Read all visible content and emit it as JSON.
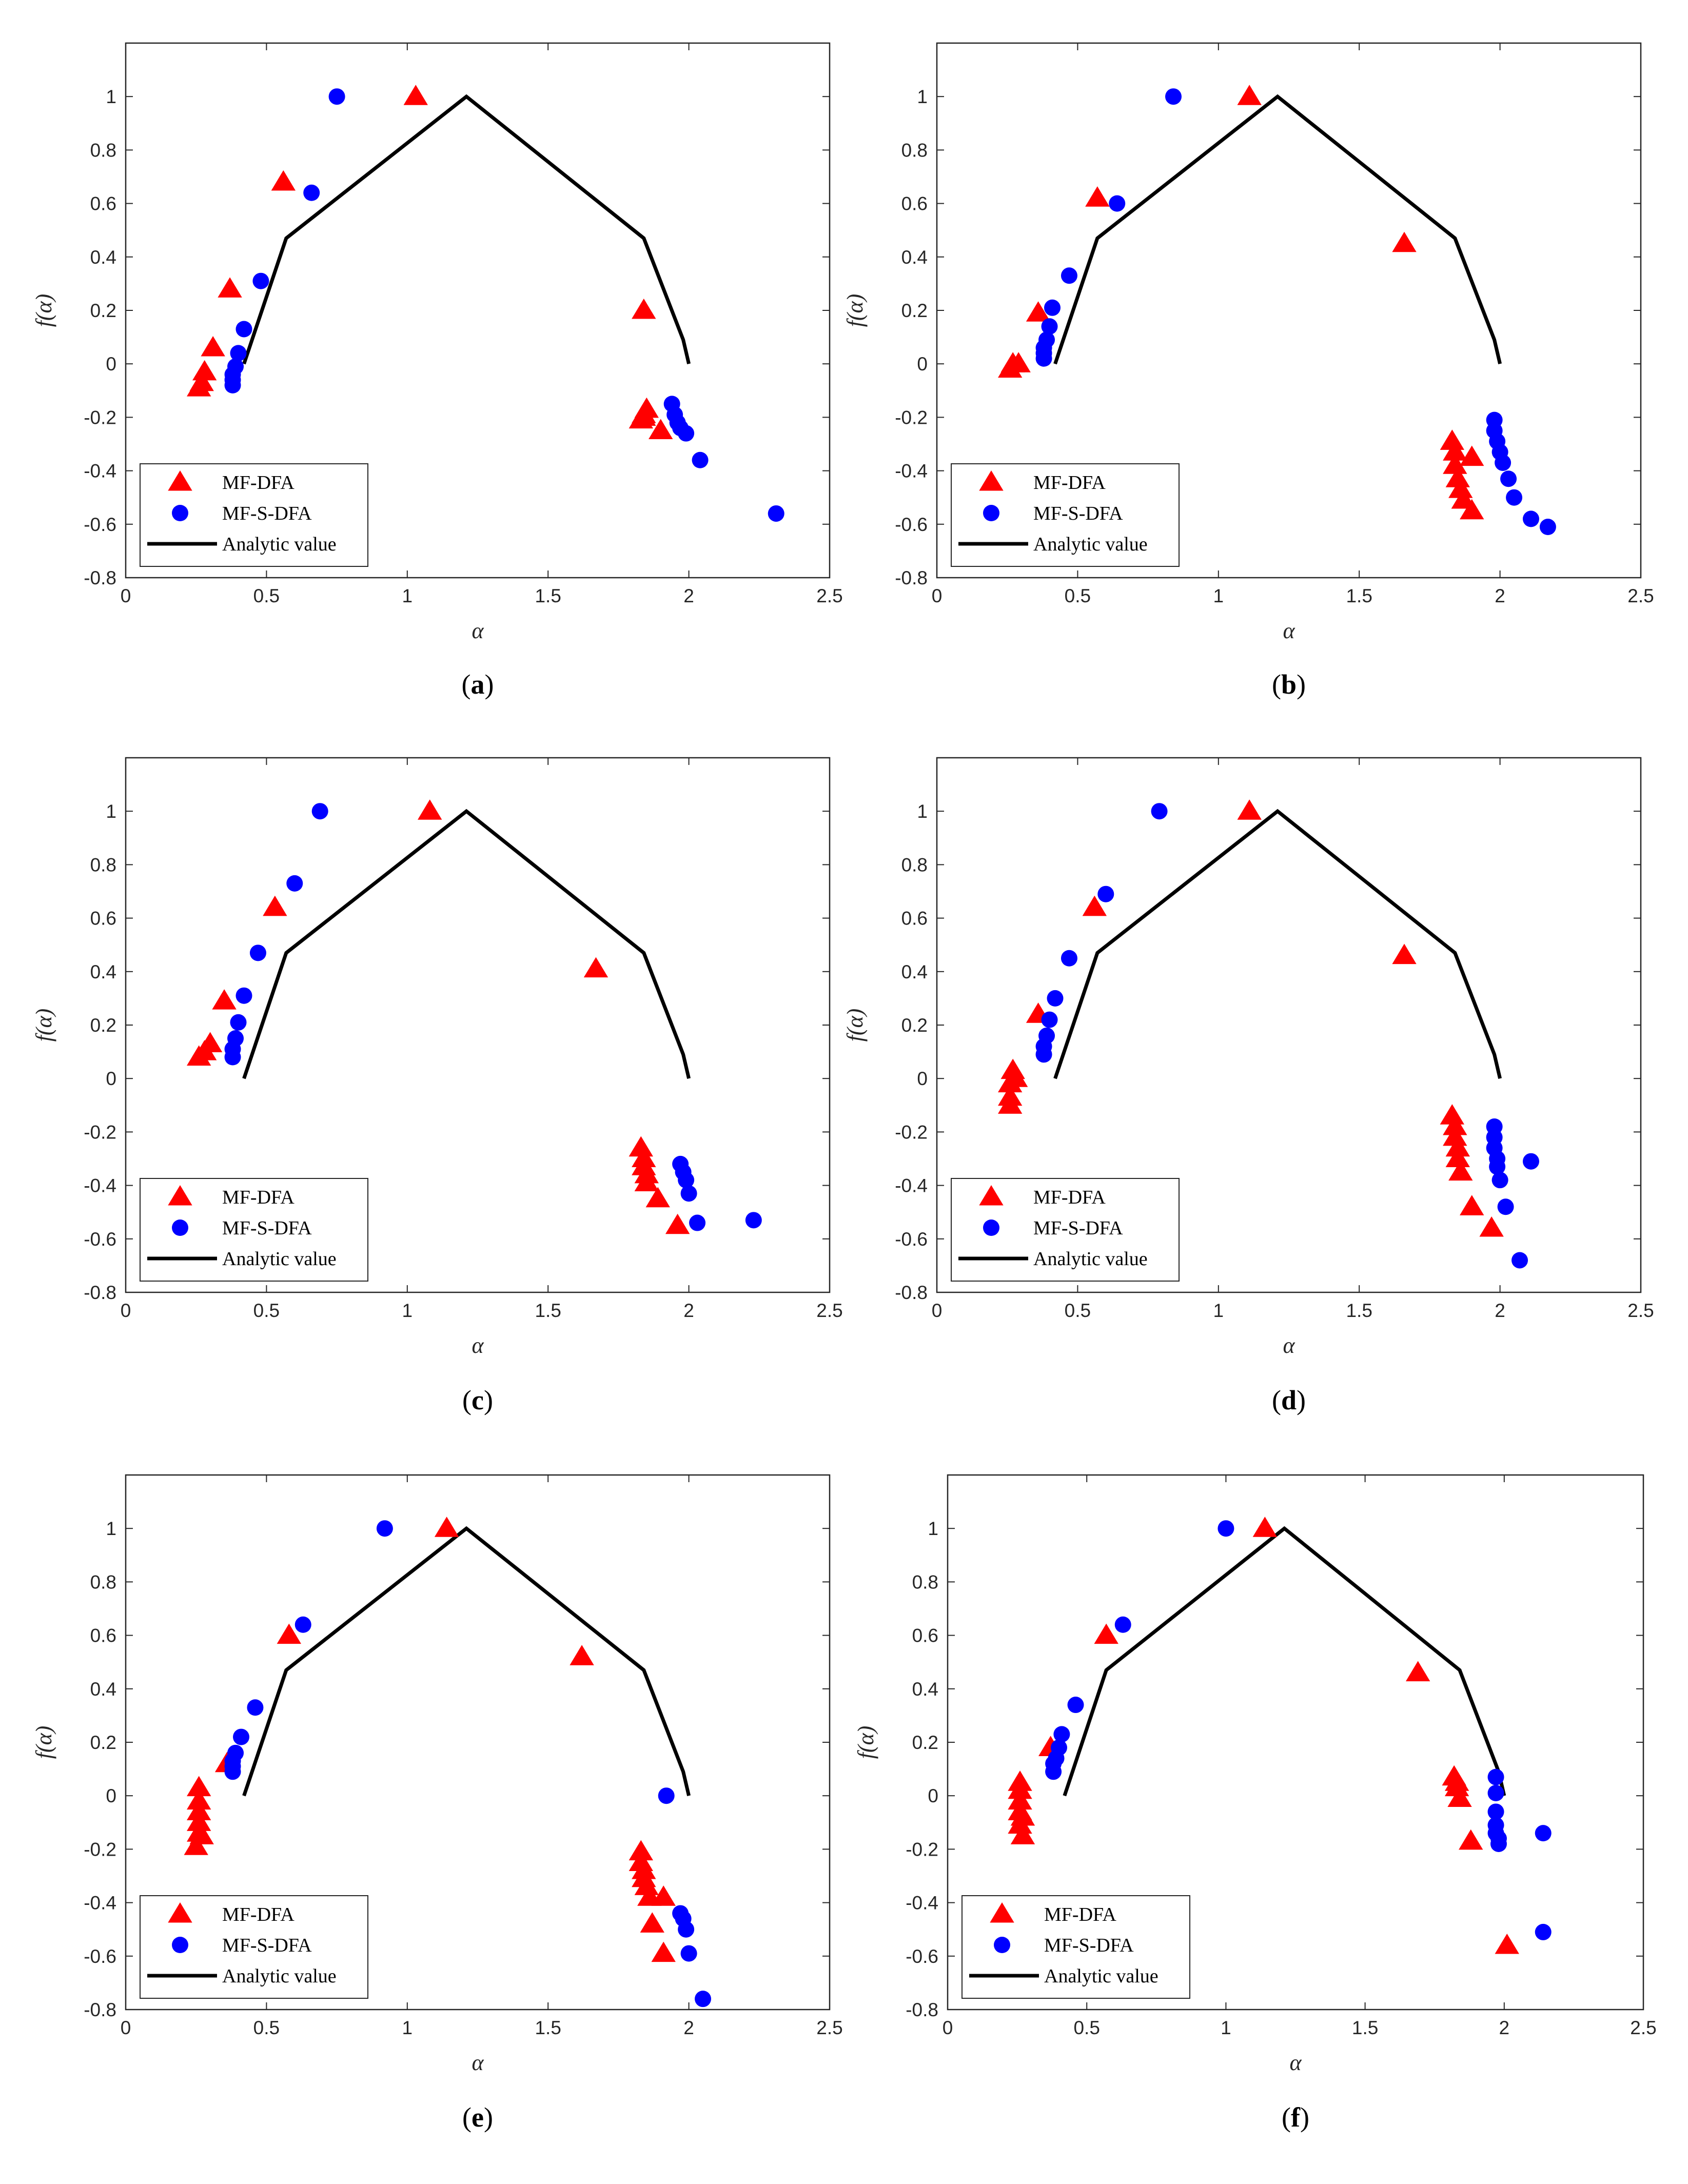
{
  "colors": {
    "mfdfa": "#ff0000",
    "mfsdfa": "#0000ff",
    "analytic": "#000000",
    "axis": "#262626"
  },
  "legend": {
    "items": [
      {
        "label": "MF-DFA",
        "marker": "triangle"
      },
      {
        "label": "MF-S-DFA",
        "marker": "circle"
      },
      {
        "label": "Analytic value",
        "marker": "line"
      }
    ]
  },
  "chart_data": [
    {
      "type": "scatter",
      "caption_letter": "a",
      "xlabel": "α",
      "ylabel": "f(α)",
      "xlim": [
        0,
        2.5
      ],
      "ylim": [
        -0.8,
        1.2
      ],
      "xticks": [
        "0",
        "0.5",
        "1",
        "1.5",
        "2",
        "2.5"
      ],
      "yticks": [
        "-0.8",
        "-0.6",
        "-0.4",
        "-0.2",
        "0",
        "0.2",
        "0.4",
        "0.6",
        "0.8",
        "1"
      ],
      "analytic": {
        "x": [
          0.42,
          0.57,
          1.21,
          1.84,
          1.98,
          2.0
        ],
        "y": [
          0.0,
          0.47,
          1.0,
          0.47,
          0.09,
          0.0
        ]
      },
      "series": [
        {
          "name": "MF-DFA",
          "x": [
            1.03,
            0.56,
            0.37,
            0.31,
            0.28,
            0.27,
            0.26,
            1.84,
            1.85,
            1.84,
            1.84,
            1.83,
            1.9
          ],
          "y": [
            1.0,
            0.68,
            0.28,
            0.06,
            -0.03,
            -0.07,
            -0.09,
            0.2,
            -0.17,
            -0.19,
            -0.2,
            -0.21,
            -0.25
          ]
        },
        {
          "name": "MF-S-DFA",
          "x": [
            0.75,
            0.66,
            0.48,
            0.42,
            0.4,
            0.39,
            0.38,
            0.38,
            0.38,
            1.94,
            1.95,
            1.96,
            1.97,
            1.99,
            2.04,
            2.31
          ],
          "y": [
            1.0,
            0.64,
            0.31,
            0.13,
            0.04,
            -0.01,
            -0.04,
            -0.06,
            -0.08,
            -0.15,
            -0.19,
            -0.22,
            -0.24,
            -0.26,
            -0.36,
            -0.56
          ]
        }
      ]
    },
    {
      "type": "scatter",
      "caption_letter": "b",
      "xlabel": "α",
      "ylabel": "f(α)",
      "xlim": [
        0,
        2.5
      ],
      "ylim": [
        -0.8,
        1.2
      ],
      "xticks": [
        "0",
        "0.5",
        "1",
        "1.5",
        "2",
        "2.5"
      ],
      "yticks": [
        "-0.8",
        "-0.6",
        "-0.4",
        "-0.2",
        "0",
        "0.2",
        "0.4",
        "0.6",
        "0.8",
        "1"
      ],
      "analytic": {
        "x": [
          0.42,
          0.57,
          1.21,
          1.84,
          1.98,
          2.0
        ],
        "y": [
          0.0,
          0.47,
          1.0,
          0.47,
          0.09,
          0.0
        ]
      },
      "series": [
        {
          "name": "MF-DFA",
          "x": [
            1.11,
            0.57,
            0.36,
            0.29,
            0.27,
            0.26,
            1.66,
            1.83,
            1.84,
            1.84,
            1.85,
            1.86,
            1.87,
            1.9,
            1.9
          ],
          "y": [
            1.0,
            0.62,
            0.19,
            0.0,
            0.0,
            -0.02,
            0.45,
            -0.29,
            -0.33,
            -0.38,
            -0.43,
            -0.47,
            -0.51,
            -0.35,
            -0.55
          ]
        },
        {
          "name": "MF-S-DFA",
          "x": [
            0.84,
            0.64,
            0.47,
            0.41,
            0.4,
            0.39,
            0.38,
            0.38,
            0.38,
            1.98,
            1.98,
            1.99,
            2.0,
            2.01,
            2.03,
            2.05,
            2.11,
            2.17
          ],
          "y": [
            1.0,
            0.6,
            0.33,
            0.21,
            0.14,
            0.09,
            0.06,
            0.04,
            0.02,
            -0.21,
            -0.25,
            -0.29,
            -0.33,
            -0.37,
            -0.43,
            -0.5,
            -0.58,
            -0.61
          ]
        }
      ]
    },
    {
      "type": "scatter",
      "caption_letter": "c",
      "xlabel": "α",
      "ylabel": "f(α)",
      "xlim": [
        0,
        2.5
      ],
      "ylim": [
        -0.8,
        1.2
      ],
      "xticks": [
        "0",
        "0.5",
        "1",
        "1.5",
        "2",
        "2.5"
      ],
      "yticks": [
        "-0.8",
        "-0.6",
        "-0.4",
        "-0.2",
        "0",
        "0.2",
        "0.4",
        "0.6",
        "0.8",
        "1"
      ],
      "analytic": {
        "x": [
          0.42,
          0.57,
          1.21,
          1.84,
          1.98,
          2.0
        ],
        "y": [
          0.0,
          0.47,
          1.0,
          0.47,
          0.09,
          0.0
        ]
      },
      "series": [
        {
          "name": "MF-DFA",
          "x": [
            1.08,
            0.53,
            0.35,
            0.3,
            0.28,
            0.26,
            1.67,
            1.83,
            1.84,
            1.84,
            1.85,
            1.85,
            1.89,
            1.96
          ],
          "y": [
            1.0,
            0.64,
            0.29,
            0.13,
            0.1,
            0.08,
            0.41,
            -0.26,
            -0.3,
            -0.33,
            -0.36,
            -0.39,
            -0.45,
            -0.55
          ]
        },
        {
          "name": "MF-S-DFA",
          "x": [
            0.69,
            0.6,
            0.47,
            0.42,
            0.4,
            0.39,
            0.38,
            0.38,
            1.97,
            1.98,
            1.99,
            2.0,
            2.03,
            2.23
          ],
          "y": [
            1.0,
            0.73,
            0.47,
            0.31,
            0.21,
            0.15,
            0.11,
            0.08,
            -0.32,
            -0.35,
            -0.38,
            -0.43,
            -0.54,
            -0.53
          ]
        }
      ]
    },
    {
      "type": "scatter",
      "caption_letter": "d",
      "xlabel": "α",
      "ylabel": "f(α)",
      "xlim": [
        0,
        2.5
      ],
      "ylim": [
        -0.8,
        1.2
      ],
      "xticks": [
        "0",
        "0.5",
        "1",
        "1.5",
        "2",
        "2.5"
      ],
      "yticks": [
        "-0.8",
        "-0.6",
        "-0.4",
        "-0.2",
        "0",
        "0.2",
        "0.4",
        "0.6",
        "0.8",
        "1"
      ],
      "analytic": {
        "x": [
          0.42,
          0.57,
          1.21,
          1.84,
          1.98,
          2.0
        ],
        "y": [
          0.0,
          0.47,
          1.0,
          0.47,
          0.09,
          0.0
        ]
      },
      "series": [
        {
          "name": "MF-DFA",
          "x": [
            1.11,
            0.56,
            0.36,
            0.27,
            0.28,
            0.26,
            0.26,
            0.26,
            1.66,
            1.83,
            1.84,
            1.84,
            1.85,
            1.85,
            1.86,
            1.9,
            1.97
          ],
          "y": [
            1.0,
            0.64,
            0.24,
            0.03,
            0.0,
            -0.02,
            -0.07,
            -0.1,
            0.46,
            -0.14,
            -0.18,
            -0.22,
            -0.26,
            -0.3,
            -0.35,
            -0.48,
            -0.56
          ]
        },
        {
          "name": "MF-S-DFA",
          "x": [
            0.79,
            0.6,
            0.47,
            0.42,
            0.4,
            0.39,
            0.38,
            0.38,
            1.98,
            1.98,
            1.98,
            1.99,
            1.99,
            2.0,
            2.02,
            2.07,
            2.11
          ],
          "y": [
            1.0,
            0.69,
            0.45,
            0.3,
            0.22,
            0.16,
            0.12,
            0.09,
            -0.18,
            -0.22,
            -0.26,
            -0.3,
            -0.33,
            -0.38,
            -0.48,
            -0.68,
            -0.31
          ]
        }
      ]
    },
    {
      "type": "scatter",
      "caption_letter": "e",
      "xlabel": "α",
      "ylabel": "f(α)",
      "xlim": [
        0,
        2.5
      ],
      "ylim": [
        -0.8,
        1.2
      ],
      "xticks": [
        "0",
        "0.5",
        "1",
        "1.5",
        "2",
        "2.5"
      ],
      "yticks": [
        "-0.8",
        "-0.6",
        "-0.4",
        "-0.2",
        "0",
        "0.2",
        "0.4",
        "0.6",
        "0.8",
        "1"
      ],
      "analytic": {
        "x": [
          0.42,
          0.57,
          1.21,
          1.84,
          1.98,
          2.0
        ],
        "y": [
          0.0,
          0.47,
          1.0,
          0.47,
          0.09,
          0.0
        ]
      },
      "series": [
        {
          "name": "MF-DFA",
          "x": [
            1.14,
            0.58,
            0.36,
            0.26,
            0.26,
            0.26,
            0.26,
            0.26,
            0.27,
            0.25,
            1.62,
            1.83,
            1.83,
            1.84,
            1.84,
            1.85,
            1.86,
            1.87,
            1.91,
            1.91
          ],
          "y": [
            1.0,
            0.6,
            0.12,
            0.03,
            -0.02,
            -0.06,
            -0.1,
            -0.14,
            -0.15,
            -0.19,
            0.52,
            -0.21,
            -0.25,
            -0.28,
            -0.31,
            -0.34,
            -0.38,
            -0.48,
            -0.38,
            -0.59
          ]
        },
        {
          "name": "MF-S-DFA",
          "x": [
            0.92,
            0.63,
            0.46,
            0.41,
            0.39,
            0.38,
            0.38,
            0.38,
            1.92,
            1.97,
            1.98,
            1.99,
            2.0,
            2.05
          ],
          "y": [
            1.0,
            0.64,
            0.33,
            0.22,
            0.16,
            0.13,
            0.11,
            0.09,
            0.0,
            -0.44,
            -0.46,
            -0.5,
            -0.59,
            -0.76
          ]
        }
      ]
    },
    {
      "type": "scatter",
      "caption_letter": "f",
      "xlabel": "α",
      "ylabel": "f(α)",
      "xlim": [
        0,
        2.5
      ],
      "ylim": [
        -0.8,
        1.2
      ],
      "xticks": [
        "0",
        "0.5",
        "1",
        "1.5",
        "2",
        "2.5"
      ],
      "yticks": [
        "-0.8",
        "-0.6",
        "-0.4",
        "-0.2",
        "0",
        "0.2",
        "0.4",
        "0.6",
        "0.8",
        "1"
      ],
      "analytic": {
        "x": [
          0.42,
          0.57,
          1.21,
          1.84,
          1.98,
          2.0
        ],
        "y": [
          0.0,
          0.47,
          1.0,
          0.47,
          0.09,
          0.0
        ]
      },
      "series": [
        {
          "name": "MF-DFA",
          "x": [
            1.14,
            0.57,
            0.37,
            0.26,
            0.26,
            0.26,
            0.26,
            0.27,
            0.26,
            0.27,
            1.69,
            1.82,
            1.83,
            1.83,
            1.84,
            1.88,
            2.01
          ],
          "y": [
            1.0,
            0.6,
            0.18,
            0.05,
            0.02,
            -0.02,
            -0.06,
            -0.08,
            -0.11,
            -0.15,
            0.46,
            0.07,
            0.05,
            0.03,
            -0.01,
            -0.17,
            -0.56
          ]
        },
        {
          "name": "MF-S-DFA",
          "x": [
            1.0,
            0.63,
            0.46,
            0.41,
            0.4,
            0.39,
            0.38,
            0.38,
            1.97,
            1.97,
            1.97,
            1.97,
            1.97,
            1.98,
            1.98,
            2.14,
            2.14
          ],
          "y": [
            1.0,
            0.64,
            0.34,
            0.23,
            0.18,
            0.14,
            0.12,
            0.09,
            0.07,
            0.01,
            -0.06,
            -0.11,
            -0.14,
            -0.16,
            -0.18,
            -0.14,
            -0.51
          ]
        }
      ]
    }
  ]
}
